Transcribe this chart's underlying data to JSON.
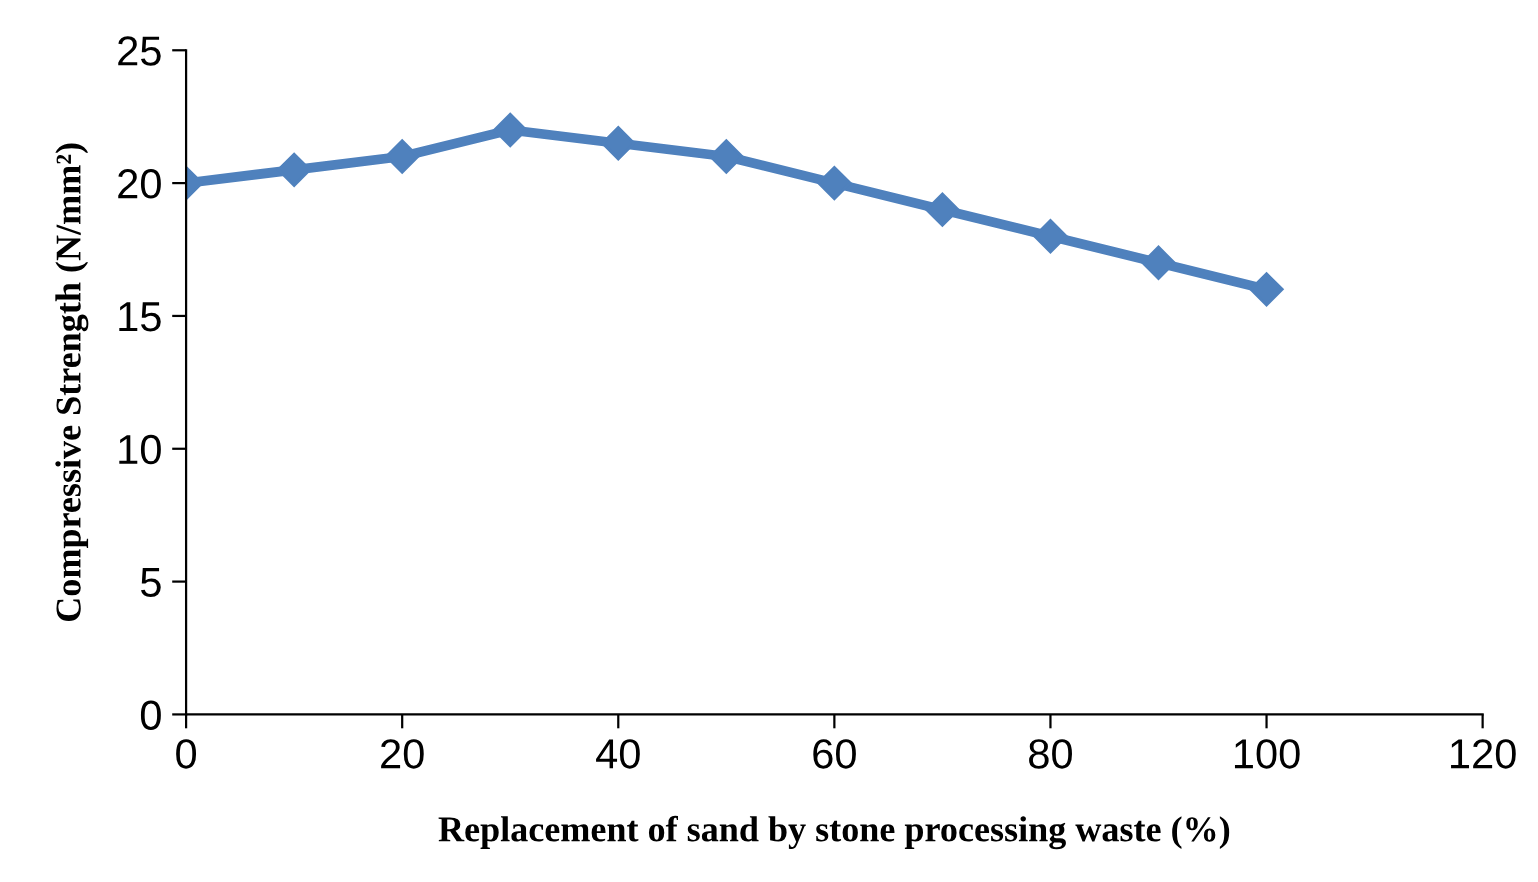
{
  "chart_data": {
    "type": "line",
    "xlabel": "Replacement of sand by stone processing waste (%)",
    "ylabel": "Compressive Strength (N/mm²)",
    "x": [
      0,
      10,
      20,
      30,
      40,
      50,
      60,
      70,
      80,
      90,
      100
    ],
    "series": [
      {
        "color": "#4f81bd",
        "values": [
          20,
          20.5,
          21,
          22,
          21.5,
          21,
          20,
          19,
          18,
          17,
          16
        ]
      }
    ],
    "xlim": [
      0,
      120
    ],
    "xticks": [
      0,
      20,
      40,
      60,
      80,
      100,
      120
    ],
    "ylim": [
      0,
      25
    ],
    "yticks": [
      0,
      5,
      10,
      15,
      20,
      25
    ],
    "grid": false,
    "marker": "diamond",
    "line_style": "solid"
  }
}
